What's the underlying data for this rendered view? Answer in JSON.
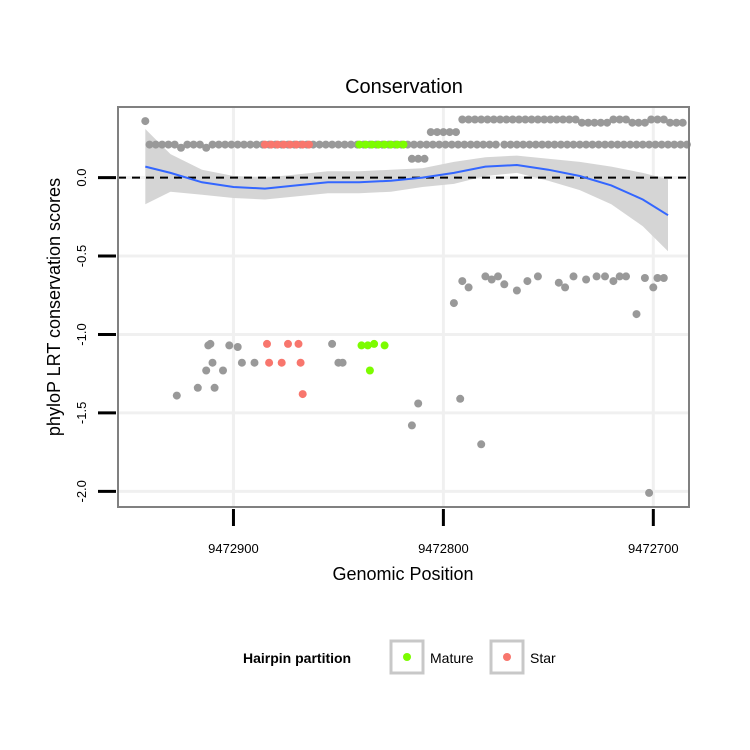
{
  "chart_data": {
    "type": "scatter",
    "title": "Conservation",
    "xlabel": "Genomic Position",
    "ylabel": "phyloP LRT conservation scores",
    "x_reversed": true,
    "xlim": [
      9472955,
      9472683
    ],
    "ylim": [
      -2.1,
      0.45
    ],
    "x_ticks": [
      9472900,
      9472800,
      9472700
    ],
    "x_tick_labels": [
      "9472900",
      "9472800",
      "9472700"
    ],
    "y_ticks": [
      0.0,
      -0.5,
      -1.0,
      -1.5,
      -2.0
    ],
    "y_tick_labels": [
      "0.0",
      "-0.5",
      "-1.0",
      "-1.5",
      "-2.0"
    ],
    "reference_line": {
      "y": 0,
      "style": "dashed"
    },
    "legend": {
      "title": "Hairpin partition",
      "placement": "bottom",
      "entries": [
        {
          "label": "Mature",
          "color": "#7CFC00"
        },
        {
          "label": "Star",
          "color": "#F8766D"
        }
      ]
    },
    "colors": {
      "other": "#999999",
      "mature": "#7CFC00",
      "star": "#F8766D",
      "smooth_line": "#3366FF",
      "ribbon": "#D3D3D3"
    },
    "series": [
      {
        "name": "Other",
        "points": [
          [
            9472942,
            0.36
          ],
          [
            9472940,
            0.21
          ],
          [
            9472937,
            0.21
          ],
          [
            9472934,
            0.21
          ],
          [
            9472931,
            0.21
          ],
          [
            9472928,
            0.21
          ],
          [
            9472925,
            0.19
          ],
          [
            9472922,
            0.21
          ],
          [
            9472919,
            0.21
          ],
          [
            9472916,
            0.21
          ],
          [
            9472913,
            0.19
          ],
          [
            9472910,
            0.21
          ],
          [
            9472907,
            0.21
          ],
          [
            9472904,
            0.21
          ],
          [
            9472901,
            0.21
          ],
          [
            9472898,
            0.21
          ],
          [
            9472895,
            0.21
          ],
          [
            9472892,
            0.21
          ],
          [
            9472889,
            0.21
          ],
          [
            9472886,
            0.21
          ],
          [
            9472883,
            0.21
          ],
          [
            9472880,
            0.21
          ],
          [
            9472877,
            0.21
          ],
          [
            9472874,
            0.21
          ],
          [
            9472871,
            0.21
          ],
          [
            9472868,
            0.21
          ],
          [
            9472865,
            0.21
          ],
          [
            9472862,
            0.21
          ],
          [
            9472859,
            0.21
          ],
          [
            9472856,
            0.21
          ],
          [
            9472853,
            0.21
          ],
          [
            9472850,
            0.21
          ],
          [
            9472847,
            0.21
          ],
          [
            9472844,
            0.21
          ],
          [
            9472841,
            0.21
          ],
          [
            9472838,
            0.21
          ],
          [
            9472835,
            0.21
          ],
          [
            9472832,
            0.21
          ],
          [
            9472829,
            0.21
          ],
          [
            9472826,
            0.21
          ],
          [
            9472823,
            0.21
          ],
          [
            9472820,
            0.21
          ],
          [
            9472817,
            0.21
          ],
          [
            9472814,
            0.21
          ],
          [
            9472811,
            0.21
          ],
          [
            9472808,
            0.21
          ],
          [
            9472805,
            0.21
          ],
          [
            9472802,
            0.21
          ],
          [
            9472799,
            0.21
          ],
          [
            9472796,
            0.21
          ],
          [
            9472793,
            0.21
          ],
          [
            9472790,
            0.21
          ],
          [
            9472787,
            0.21
          ],
          [
            9472784,
            0.21
          ],
          [
            9472781,
            0.21
          ],
          [
            9472778,
            0.21
          ],
          [
            9472775,
            0.21
          ],
          [
            9472771,
            0.21
          ],
          [
            9472768,
            0.21
          ],
          [
            9472765,
            0.21
          ],
          [
            9472762,
            0.21
          ],
          [
            9472759,
            0.21
          ],
          [
            9472756,
            0.21
          ],
          [
            9472753,
            0.21
          ],
          [
            9472750,
            0.21
          ],
          [
            9472747,
            0.21
          ],
          [
            9472744,
            0.21
          ],
          [
            9472741,
            0.21
          ],
          [
            9472738,
            0.21
          ],
          [
            9472735,
            0.21
          ],
          [
            9472732,
            0.21
          ],
          [
            9472729,
            0.21
          ],
          [
            9472726,
            0.21
          ],
          [
            9472723,
            0.21
          ],
          [
            9472720,
            0.21
          ],
          [
            9472717,
            0.21
          ],
          [
            9472714,
            0.21
          ],
          [
            9472711,
            0.21
          ],
          [
            9472708,
            0.21
          ],
          [
            9472705,
            0.21
          ],
          [
            9472702,
            0.21
          ],
          [
            9472699,
            0.21
          ],
          [
            9472696,
            0.21
          ],
          [
            9472693,
            0.21
          ],
          [
            9472690,
            0.21
          ],
          [
            9472687,
            0.21
          ],
          [
            9472684,
            0.21
          ],
          [
            9472815,
            0.12
          ],
          [
            9472812,
            0.12
          ],
          [
            9472809,
            0.12
          ],
          [
            9472806,
            0.29
          ],
          [
            9472803,
            0.29
          ],
          [
            9472800,
            0.29
          ],
          [
            9472797,
            0.29
          ],
          [
            9472794,
            0.29
          ],
          [
            9472791,
            0.37
          ],
          [
            9472788,
            0.37
          ],
          [
            9472785,
            0.37
          ],
          [
            9472782,
            0.37
          ],
          [
            9472779,
            0.37
          ],
          [
            9472776,
            0.37
          ],
          [
            9472773,
            0.37
          ],
          [
            9472770,
            0.37
          ],
          [
            9472767,
            0.37
          ],
          [
            9472764,
            0.37
          ],
          [
            9472761,
            0.37
          ],
          [
            9472758,
            0.37
          ],
          [
            9472755,
            0.37
          ],
          [
            9472752,
            0.37
          ],
          [
            9472749,
            0.37
          ],
          [
            9472746,
            0.37
          ],
          [
            9472743,
            0.37
          ],
          [
            9472740,
            0.37
          ],
          [
            9472737,
            0.37
          ],
          [
            9472734,
            0.35
          ],
          [
            9472731,
            0.35
          ],
          [
            9472728,
            0.35
          ],
          [
            9472725,
            0.35
          ],
          [
            9472722,
            0.35
          ],
          [
            9472719,
            0.37
          ],
          [
            9472716,
            0.37
          ],
          [
            9472713,
            0.37
          ],
          [
            9472710,
            0.35
          ],
          [
            9472707,
            0.35
          ],
          [
            9472704,
            0.35
          ],
          [
            9472701,
            0.37
          ],
          [
            9472698,
            0.37
          ],
          [
            9472695,
            0.37
          ],
          [
            9472692,
            0.35
          ],
          [
            9472689,
            0.35
          ],
          [
            9472686,
            0.35
          ],
          [
            9472927,
            -1.39
          ],
          [
            9472917,
            -1.34
          ],
          [
            9472913,
            -1.23
          ],
          [
            9472912,
            -1.07
          ],
          [
            9472911,
            -1.06
          ],
          [
            9472910,
            -1.18
          ],
          [
            9472909,
            -1.34
          ],
          [
            9472905,
            -1.23
          ],
          [
            9472902,
            -1.07
          ],
          [
            9472898,
            -1.08
          ],
          [
            9472896,
            -1.18
          ],
          [
            9472890,
            -1.18
          ],
          [
            9472853,
            -1.06
          ],
          [
            9472850,
            -1.18
          ],
          [
            9472848,
            -1.18
          ],
          [
            9472815,
            -1.58
          ],
          [
            9472812,
            -1.44
          ],
          [
            9472795,
            -0.8
          ],
          [
            9472792,
            -1.41
          ],
          [
            9472791,
            -0.66
          ],
          [
            9472788,
            -0.7
          ],
          [
            9472782,
            -1.7
          ],
          [
            9472780,
            -0.63
          ],
          [
            9472777,
            -0.65
          ],
          [
            9472774,
            -0.63
          ],
          [
            9472771,
            -0.68
          ],
          [
            9472765,
            -0.72
          ],
          [
            9472760,
            -0.66
          ],
          [
            9472755,
            -0.63
          ],
          [
            9472745,
            -0.67
          ],
          [
            9472742,
            -0.7
          ],
          [
            9472738,
            -0.63
          ],
          [
            9472732,
            -0.65
          ],
          [
            9472727,
            -0.63
          ],
          [
            9472723,
            -0.63
          ],
          [
            9472719,
            -0.66
          ],
          [
            9472716,
            -0.63
          ],
          [
            9472713,
            -0.63
          ],
          [
            9472708,
            -0.87
          ],
          [
            9472704,
            -0.64
          ],
          [
            9472702,
            -2.01
          ],
          [
            9472700,
            -0.7
          ],
          [
            9472698,
            -0.64
          ],
          [
            9472695,
            -0.64
          ]
        ]
      },
      {
        "name": "Star",
        "points": [
          [
            9472885,
            0.21
          ],
          [
            9472882,
            0.21
          ],
          [
            9472879,
            0.21
          ],
          [
            9472876,
            0.21
          ],
          [
            9472873,
            0.21
          ],
          [
            9472870,
            0.21
          ],
          [
            9472867,
            0.21
          ],
          [
            9472864,
            0.21
          ],
          [
            9472884,
            -1.06
          ],
          [
            9472883,
            -1.18
          ],
          [
            9472877,
            -1.18
          ],
          [
            9472874,
            -1.06
          ],
          [
            9472868,
            -1.18
          ],
          [
            9472869,
            -1.06
          ],
          [
            9472867,
            -1.38
          ]
        ]
      },
      {
        "name": "Mature",
        "points": [
          [
            9472840,
            0.21
          ],
          [
            9472837,
            0.21
          ],
          [
            9472834,
            0.21
          ],
          [
            9472831,
            0.21
          ],
          [
            9472828,
            0.21
          ],
          [
            9472825,
            0.21
          ],
          [
            9472822,
            0.21
          ],
          [
            9472819,
            0.21
          ],
          [
            9472839,
            -1.07
          ],
          [
            9472836,
            -1.07
          ],
          [
            9472835,
            -1.23
          ],
          [
            9472833,
            -1.06
          ],
          [
            9472828,
            -1.07
          ]
        ]
      }
    ],
    "smooth_fit": {
      "x": [
        9472942,
        9472930,
        9472915,
        9472900,
        9472885,
        9472870,
        9472855,
        9472840,
        9472825,
        9472810,
        9472795,
        9472780,
        9472765,
        9472750,
        9472735,
        9472720,
        9472705,
        9472693
      ],
      "y": [
        0.07,
        0.03,
        -0.03,
        -0.06,
        -0.07,
        -0.05,
        -0.03,
        -0.03,
        -0.02,
        0.0,
        0.03,
        0.07,
        0.08,
        0.05,
        0.01,
        -0.05,
        -0.14,
        -0.24
      ],
      "lo": [
        -0.17,
        -0.09,
        -0.11,
        -0.13,
        -0.14,
        -0.12,
        -0.1,
        -0.1,
        -0.09,
        -0.06,
        -0.04,
        0.01,
        0.03,
        -0.02,
        -0.08,
        -0.17,
        -0.31,
        -0.47
      ],
      "hi": [
        0.31,
        0.15,
        0.05,
        0.01,
        0.0,
        0.02,
        0.04,
        0.04,
        0.05,
        0.06,
        0.1,
        0.13,
        0.14,
        0.12,
        0.1,
        0.07,
        0.03,
        -0.01
      ]
    }
  }
}
